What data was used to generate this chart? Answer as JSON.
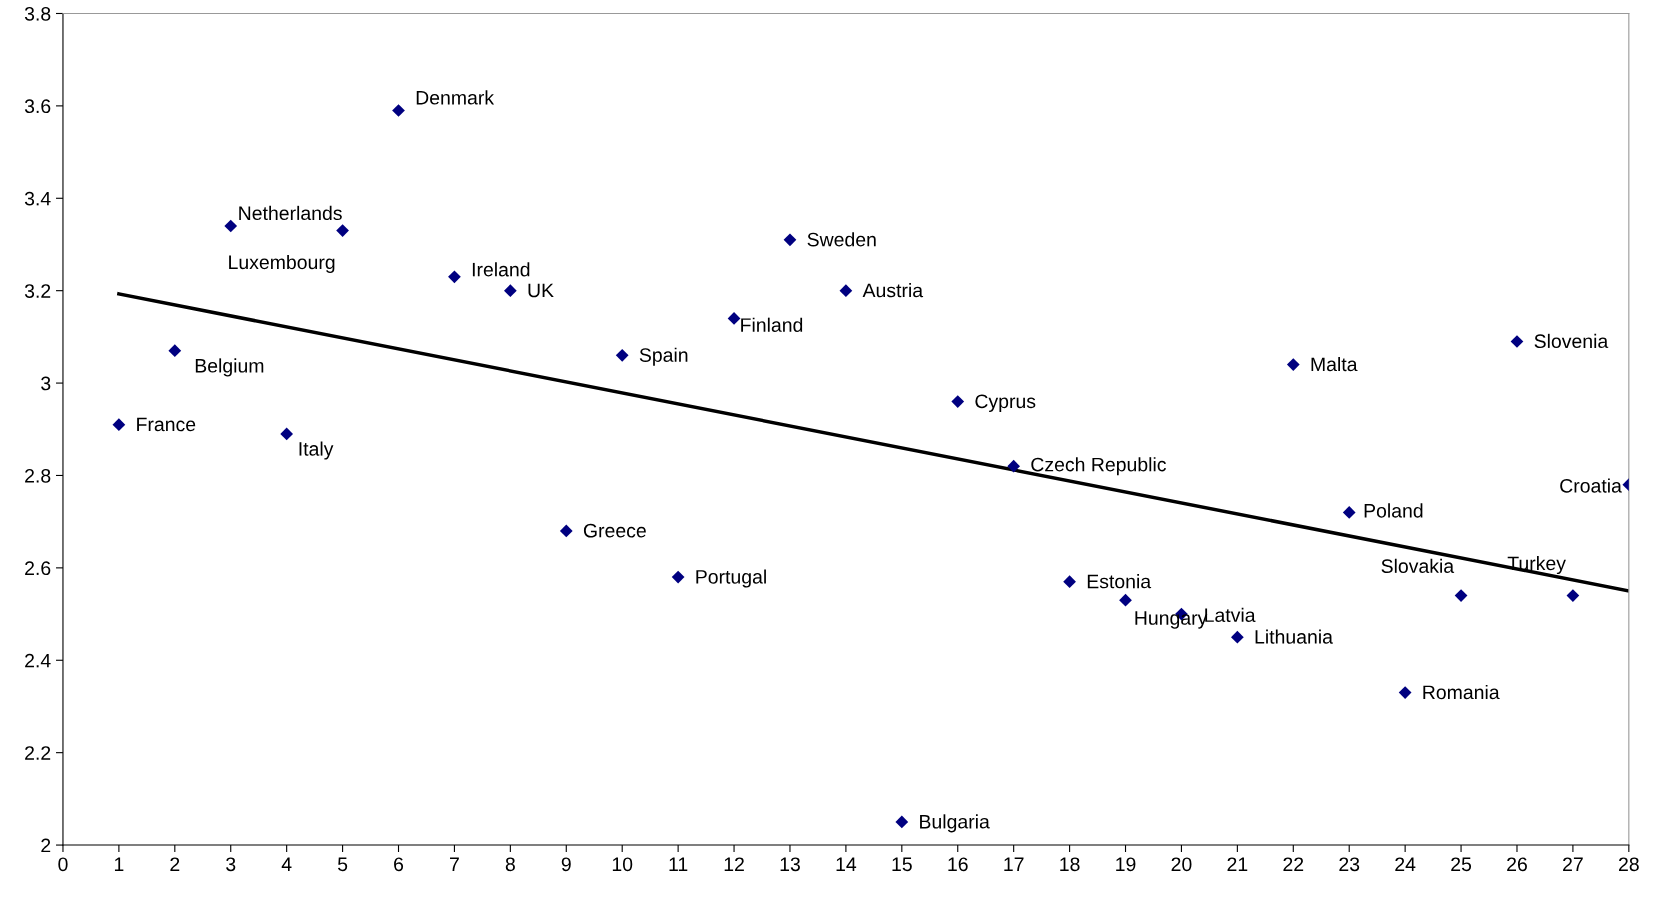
{
  "chart_data": {
    "type": "scatter",
    "xlim": [
      0,
      28
    ],
    "ylim": [
      2,
      3.8
    ],
    "xticks": [
      0,
      1,
      2,
      3,
      4,
      5,
      6,
      7,
      8,
      9,
      10,
      11,
      12,
      13,
      14,
      15,
      16,
      17,
      18,
      19,
      20,
      21,
      22,
      23,
      24,
      25,
      26,
      27,
      28
    ],
    "yticks": [
      2,
      2.2,
      2.4,
      2.6,
      2.8,
      3,
      3.2,
      3.4,
      3.6,
      3.8
    ],
    "grid": false,
    "series": [
      {
        "marker": "diamond",
        "color": "#000080",
        "x": [
          1,
          2,
          3,
          4,
          5,
          6,
          7,
          8,
          9,
          10,
          11,
          12,
          13,
          14,
          15,
          16,
          17,
          18,
          19,
          20,
          21,
          22,
          23,
          24,
          25,
          26,
          27,
          28
        ],
        "values": [
          2.91,
          3.07,
          3.34,
          2.89,
          3.33,
          3.59,
          3.23,
          3.2,
          2.68,
          3.06,
          2.58,
          3.14,
          3.31,
          3.2,
          2.05,
          2.96,
          2.82,
          2.57,
          2.53,
          2.5,
          2.45,
          3.04,
          2.72,
          2.33,
          2.54,
          3.09,
          2.54,
          2.78
        ]
      },
      {
        "type": "line",
        "marker": "none",
        "line_style": "solid",
        "color": "#000000",
        "x": [
          1,
          28
        ],
        "values": [
          3.193,
          2.55
        ]
      }
    ],
    "annotations": [
      {
        "text": "France",
        "x": 1,
        "y": 2.91
      },
      {
        "text": "Belgium",
        "x": 2,
        "y": 3.07
      },
      {
        "text": "Netherlands",
        "x": 3,
        "y": 3.34
      },
      {
        "text": "Italy",
        "x": 4,
        "y": 2.89
      },
      {
        "text": "Luxembourg",
        "x": 5,
        "y": 3.33
      },
      {
        "text": "Denmark",
        "x": 6,
        "y": 3.59
      },
      {
        "text": "Ireland",
        "x": 7,
        "y": 3.23
      },
      {
        "text": "UK",
        "x": 8,
        "y": 3.2
      },
      {
        "text": "Greece",
        "x": 9,
        "y": 2.68
      },
      {
        "text": "Spain",
        "x": 10,
        "y": 3.06
      },
      {
        "text": "Portugal",
        "x": 11,
        "y": 2.58
      },
      {
        "text": "Finland",
        "x": 12,
        "y": 3.14
      },
      {
        "text": "Sweden",
        "x": 13,
        "y": 3.31
      },
      {
        "text": "Austria",
        "x": 14,
        "y": 3.2
      },
      {
        "text": "Bulgaria",
        "x": 15,
        "y": 2.05
      },
      {
        "text": "Cyprus",
        "x": 16,
        "y": 2.96
      },
      {
        "text": "Czech Republic",
        "x": 17,
        "y": 2.82
      },
      {
        "text": "Estonia",
        "x": 18,
        "y": 2.57
      },
      {
        "text": "Hungary",
        "x": 19,
        "y": 2.53
      },
      {
        "text": "Latvia",
        "x": 20,
        "y": 2.5
      },
      {
        "text": "Lithuania",
        "x": 21,
        "y": 2.45
      },
      {
        "text": "Malta",
        "x": 22,
        "y": 3.04
      },
      {
        "text": "Poland",
        "x": 23,
        "y": 2.72
      },
      {
        "text": "Romania",
        "x": 24,
        "y": 2.33
      },
      {
        "text": "Slovakia",
        "x": 25,
        "y": 2.54
      },
      {
        "text": "Slovenia",
        "x": 26,
        "y": 3.09
      },
      {
        "text": "Turkey",
        "x": 27,
        "y": 2.54
      },
      {
        "text": "Croatia",
        "x": 28,
        "y": 2.78
      }
    ]
  }
}
